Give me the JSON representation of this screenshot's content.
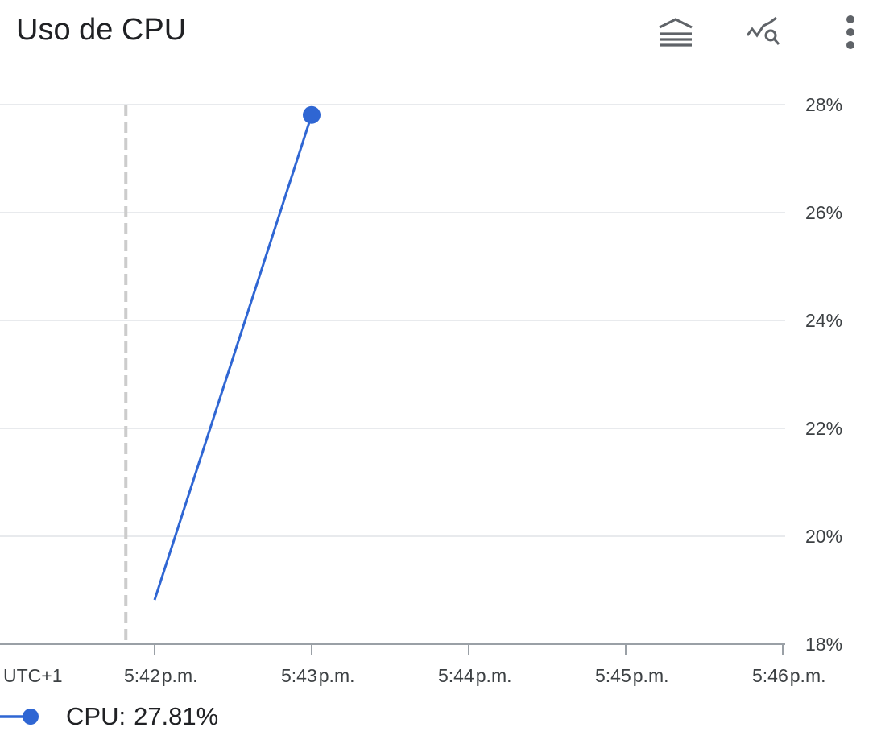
{
  "card": {
    "title": "Uso de CPU",
    "toolbar": [
      {
        "name": "legend-toggle",
        "icon": "stacked-lines-icon"
      },
      {
        "name": "explore-metrics",
        "icon": "chart-search-icon"
      },
      {
        "name": "more-options",
        "icon": "more-vert-icon"
      }
    ]
  },
  "colors": {
    "series": "#2f66d3",
    "grid": "#e8eaed",
    "axis": "#9aa0a6",
    "cursor": "#cccccc",
    "text": "#3c4043"
  },
  "chart_data": {
    "type": "line",
    "title": "Uso de CPU",
    "timezone_label": "UTC+1",
    "x_ticks": [
      "5:42 p.m.",
      "5:43 p.m.",
      "5:44 p.m.",
      "5:45 p.m.",
      "5:46 p.m."
    ],
    "y_ticks": [
      "18%",
      "20%",
      "22%",
      "24%",
      "26%",
      "28%"
    ],
    "xlim": [
      "5:41 p.m.",
      "5:46 p.m."
    ],
    "ylim": [
      18,
      28
    ],
    "y_axis_side": "right",
    "grid": true,
    "cursor_x": "5:41:49 p.m.",
    "series": [
      {
        "name": "CPU",
        "points": [
          {
            "x": "5:42 p.m.",
            "y": 18.82
          },
          {
            "x": "5:43 p.m.",
            "y": 27.81
          }
        ]
      }
    ]
  },
  "legend": {
    "label": "CPU:",
    "value": "27.81%"
  }
}
